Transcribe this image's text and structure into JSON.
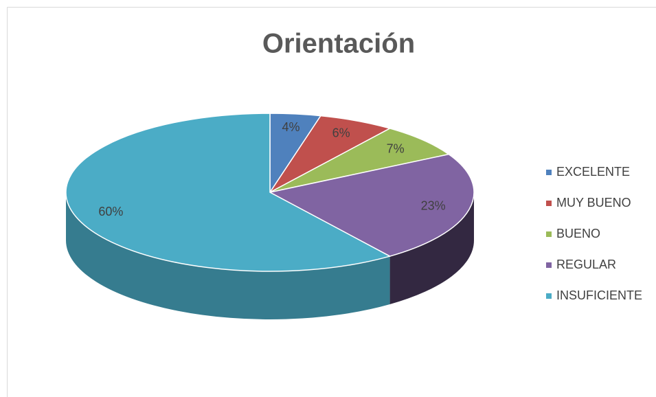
{
  "chart_data": {
    "type": "pie",
    "title": "Orientación",
    "categories": [
      "EXCELENTE",
      "MUY BUENO",
      "BUENO",
      "REGULAR",
      "INSUFICIENTE"
    ],
    "values": [
      4,
      6,
      7,
      23,
      60
    ],
    "value_labels": [
      "4%",
      "6%",
      "7%",
      "23%",
      "60%"
    ],
    "colors": [
      "#4f81bd",
      "#c0504d",
      "#9bbb59",
      "#8064a2",
      "#4bacc6"
    ],
    "legend": "right"
  }
}
